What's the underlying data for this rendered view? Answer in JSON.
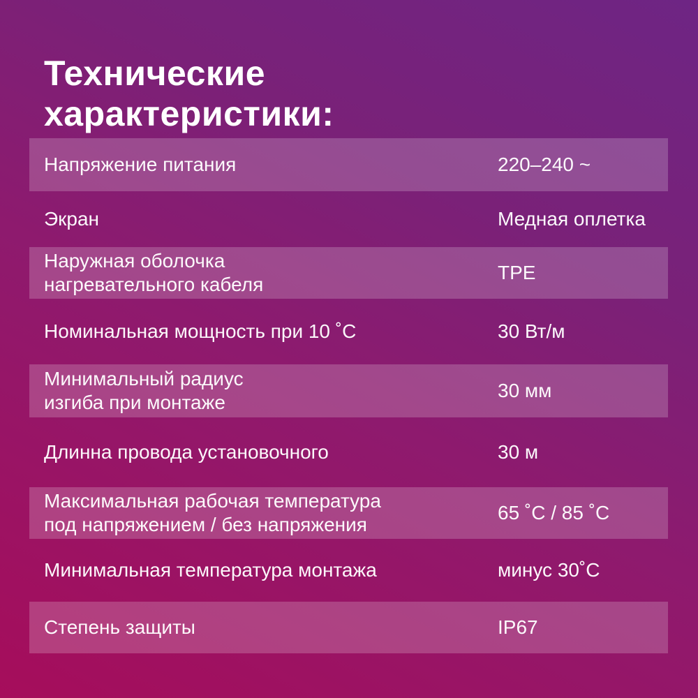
{
  "title": "Технические\nхарактеристики:",
  "table": {
    "rows": [
      {
        "label": "Напряжение питания",
        "value": "220–240  ~"
      },
      {
        "label": "Экран",
        "value": "Медная оплетка"
      },
      {
        "label": "Наружная оболочка\nнагревательного кабеля",
        "value": "TPE"
      },
      {
        "label": "Номинальная мощность при 10 ˚С",
        "value": "30 Вт/м"
      },
      {
        "label": "Минимальный радиус\nизгиба при монтаже",
        "value": "30 мм"
      },
      {
        "label": "Длинна провода установочного",
        "value": "30 м"
      },
      {
        "label": "Максимальная рабочая температура\nпод напряжением / без напряжения",
        "value": "65 ˚С / 85 ˚С"
      },
      {
        "label": "Минимальная температура монтажа",
        "value": "минус 30˚С"
      },
      {
        "label": "Степень защиты",
        "value": "IP67"
      }
    ]
  },
  "colors": {
    "background_gradient_bottom_left": "#a60d5b",
    "background_gradient_top_right": "#6e2584",
    "row_highlight": "rgba(255,255,255,0.2)",
    "text": "#ffffff"
  }
}
